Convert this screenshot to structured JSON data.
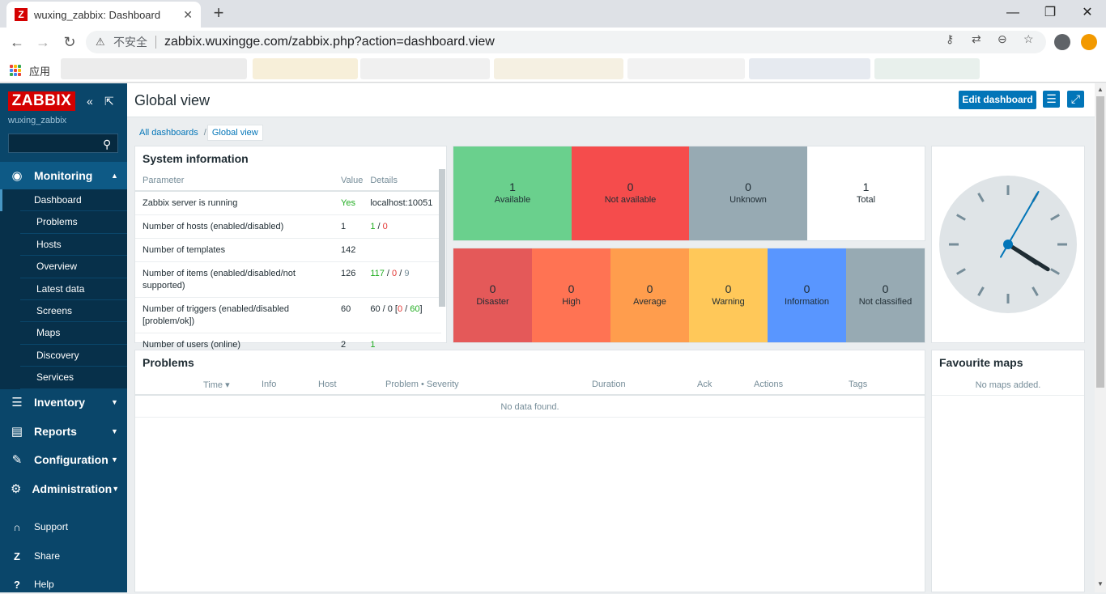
{
  "browser": {
    "tab_title": "wuxing_zabbix: Dashboard",
    "tab_favicon": "Z",
    "security_label": "不安全",
    "url": "zabbix.wuxingge.com/zabbix.php?action=dashboard.view",
    "apps_label": "应用"
  },
  "sidebar": {
    "logo": "ZABBIX",
    "server_name": "wuxing_zabbix",
    "search_placeholder": "",
    "sections": {
      "monitoring": "Monitoring",
      "inventory": "Inventory",
      "reports": "Reports",
      "configuration": "Configuration",
      "administration": "Administration"
    },
    "monitoring_items": [
      "Dashboard",
      "Problems",
      "Hosts",
      "Overview",
      "Latest data",
      "Screens",
      "Maps",
      "Discovery",
      "Services"
    ],
    "bottom": {
      "support": "Support",
      "share": "Share",
      "help": "Help"
    }
  },
  "header": {
    "title": "Global view",
    "edit_label": "Edit dashboard"
  },
  "breadcrumb": {
    "all": "All dashboards",
    "current": "Global view"
  },
  "system_info": {
    "title": "System information",
    "columns": [
      "Parameter",
      "Value",
      "Details"
    ],
    "rows": [
      {
        "param": "Zabbix server is running",
        "value": "Yes",
        "details": "localhost:10051"
      },
      {
        "param": "Number of hosts (enabled/disabled)",
        "value": "1",
        "d1": "1",
        "d2": "0"
      },
      {
        "param": "Number of templates",
        "value": "142"
      },
      {
        "param": "Number of items (enabled/disabled/not supported)",
        "value": "126",
        "d1": "117",
        "d2": "0",
        "d3": "9"
      },
      {
        "param": "Number of triggers (enabled/disabled [problem/ok])",
        "value": "60",
        "d0": "60 / 0 [",
        "d1": "0",
        "d2": "60",
        "d3": "]"
      },
      {
        "param": "Number of users (online)",
        "value": "2",
        "d1": "1"
      }
    ]
  },
  "host_availability": {
    "tiles": [
      {
        "count": "1",
        "label": "Available",
        "color": "#6ad08d"
      },
      {
        "count": "0",
        "label": "Not available",
        "color": "#f54c4c"
      },
      {
        "count": "0",
        "label": "Unknown",
        "color": "#97aab3"
      },
      {
        "count": "1",
        "label": "Total",
        "color": "#ffffff"
      }
    ]
  },
  "problems_by_severity": {
    "tiles": [
      {
        "count": "0",
        "label": "Disaster",
        "color": "#e45959"
      },
      {
        "count": "0",
        "label": "High",
        "color": "#ff7353"
      },
      {
        "count": "0",
        "label": "Average",
        "color": "#ff9d4d"
      },
      {
        "count": "0",
        "label": "Warning",
        "color": "#ffc859"
      },
      {
        "count": "0",
        "label": "Information",
        "color": "#5996ff"
      },
      {
        "count": "0",
        "label": "Not classified",
        "color": "#97aab3"
      }
    ]
  },
  "clock": {
    "hour": 4,
    "minute": 4,
    "second": 5
  },
  "problems": {
    "title": "Problems",
    "columns": {
      "time": "Time ▾",
      "info": "Info",
      "host": "Host",
      "problem": "Problem • Severity",
      "duration": "Duration",
      "ack": "Ack",
      "actions": "Actions",
      "tags": "Tags"
    },
    "empty": "No data found."
  },
  "favourite_maps": {
    "title": "Favourite maps",
    "empty": "No maps added."
  },
  "colors": {
    "sidebar_bg": "#0a466a",
    "accent": "#0275b8",
    "logo_red": "#d40000"
  }
}
